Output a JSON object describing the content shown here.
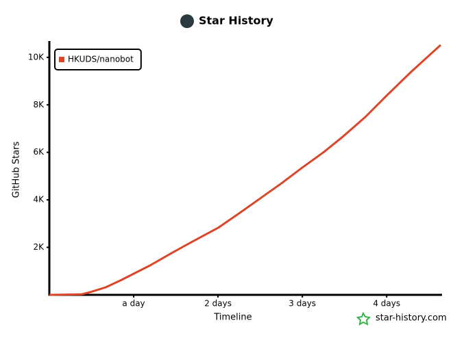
{
  "chart_data": {
    "type": "line",
    "title": "Star History",
    "x_label": "Timeline",
    "y_label": "GitHub Stars",
    "watermark": "star-history.com",
    "legend": "top-left",
    "series": [
      {
        "name": "HKUDS/nanobot",
        "color": "#dd4528",
        "x": [
          0,
          0.38,
          0.5,
          0.67,
          0.85,
          1.0,
          1.2,
          1.45,
          1.7,
          2.0,
          2.25,
          2.5,
          2.75,
          3.0,
          3.25,
          3.48,
          3.75,
          4.0,
          4.29,
          4.64
        ],
        "values": [
          0,
          20,
          130,
          320,
          620,
          890,
          1250,
          1760,
          2250,
          2820,
          3430,
          4060,
          4690,
          5360,
          6000,
          6660,
          7500,
          8390,
          9390,
          10520
        ]
      }
    ],
    "xlim": [
      0,
      4.64
    ],
    "ylim": [
      0,
      10600
    ],
    "xticks": [
      {
        "value": 1,
        "label": "a day"
      },
      {
        "value": 2,
        "label": "2 days"
      },
      {
        "value": 3,
        "label": "3 days"
      },
      {
        "value": 4,
        "label": "4 days"
      }
    ],
    "yticks": [
      {
        "value": 2000,
        "label": "2K"
      },
      {
        "value": 4000,
        "label": "4K"
      },
      {
        "value": 6000,
        "label": "6K"
      },
      {
        "value": 8000,
        "label": "8K"
      },
      {
        "value": 10000,
        "label": "10K"
      }
    ]
  }
}
